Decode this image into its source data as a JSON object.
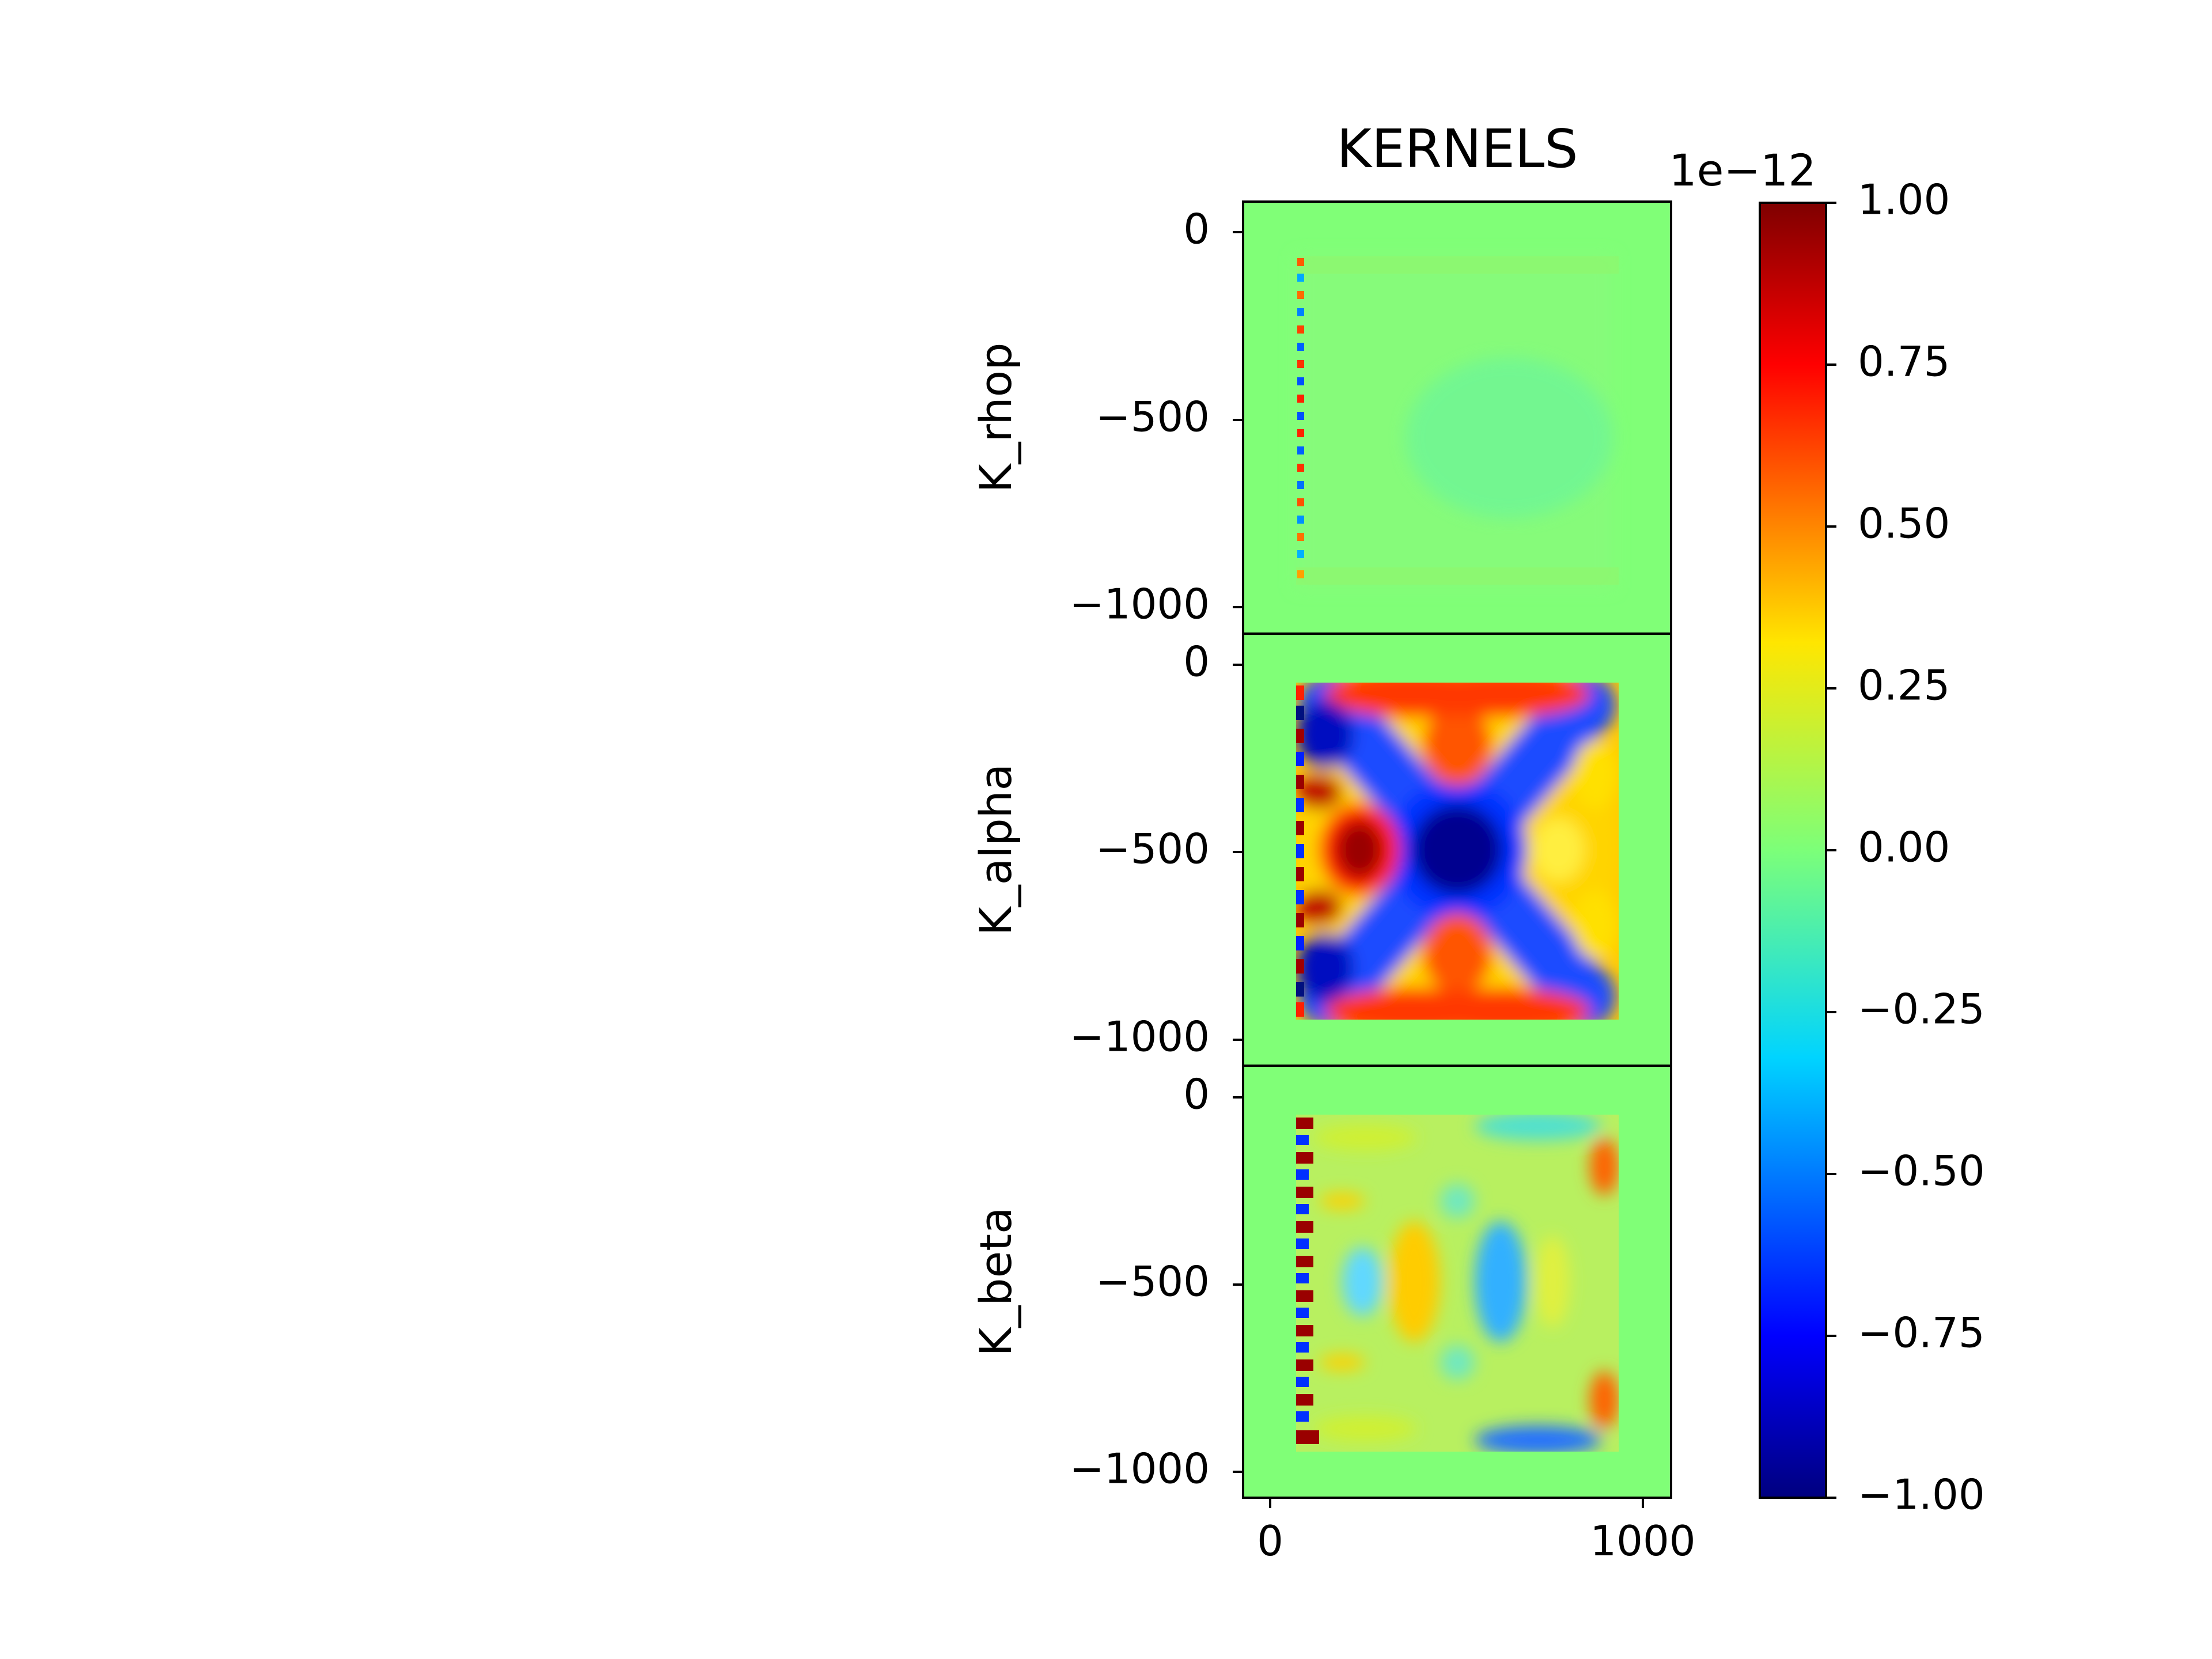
{
  "chart_data": {
    "type": "heatmap",
    "title": "KERNELS",
    "x_ticks": [
      "0",
      "1000"
    ],
    "xlim": [
      -75,
      1075
    ],
    "colormap": "jet",
    "colorbar": {
      "offset_label": "1e−12",
      "range": [
        -1.0,
        1.0
      ],
      "ticks": [
        "1.00",
        "0.75",
        "0.50",
        "0.25",
        "0.00",
        "−0.25",
        "−0.50",
        "−0.75",
        "−1.00"
      ]
    },
    "panels": [
      {
        "ylabel": "K_rhop",
        "ylim": [
          -1075,
          75
        ],
        "y_ticks": [
          "0",
          "−500",
          "−1000"
        ]
      },
      {
        "ylabel": "K_alpha",
        "ylim": [
          -1075,
          75
        ],
        "y_ticks": [
          "0",
          "−500",
          "−1000"
        ]
      },
      {
        "ylabel": "K_beta",
        "ylim": [
          -1075,
          75
        ],
        "y_ticks": [
          "0",
          "−500",
          "−1000"
        ]
      }
    ],
    "colors": {
      "background_zero": "#80ff77",
      "axis": "#000000"
    }
  }
}
